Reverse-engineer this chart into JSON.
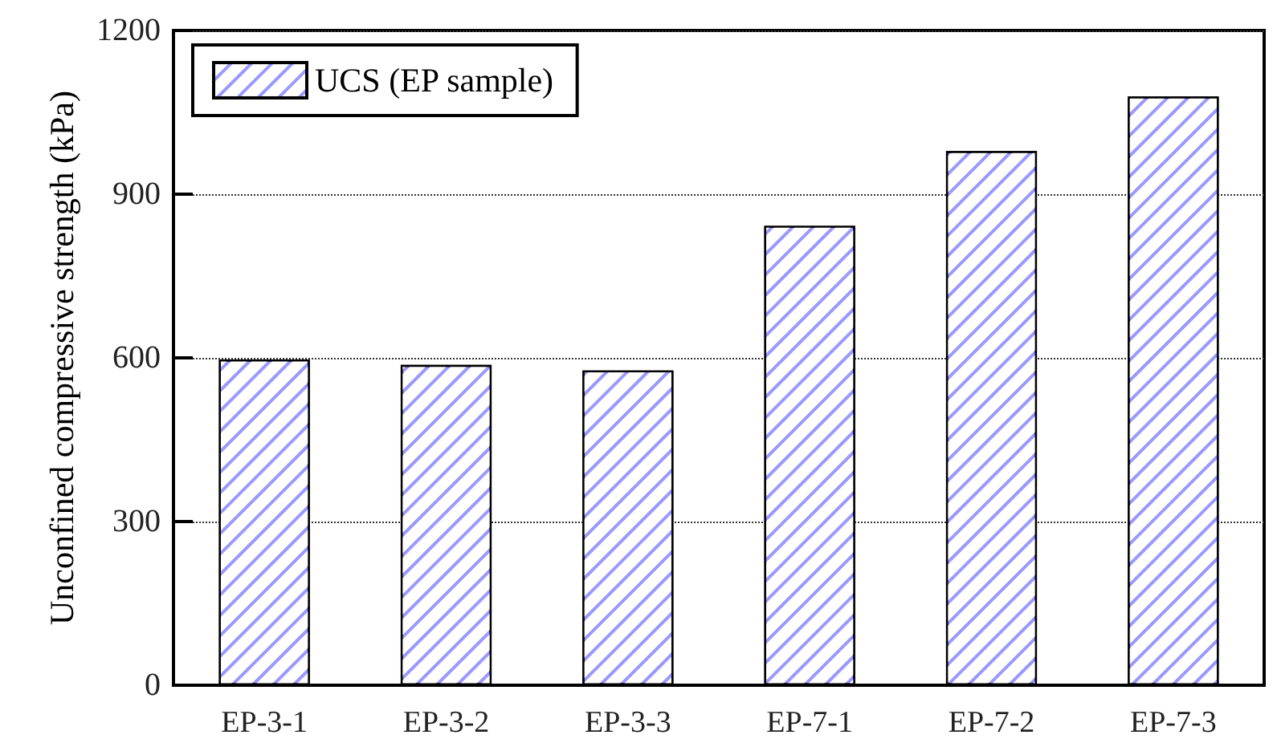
{
  "chart_data": {
    "type": "bar",
    "ylabel": "Unconfined compressive strength (kPa)",
    "categories": [
      "EP-3-1",
      "EP-3-2",
      "EP-3-3",
      "EP-7-1",
      "EP-7-2",
      "EP-7-3"
    ],
    "series": [
      {
        "name": "UCS (EP sample)",
        "color": "#9999ff",
        "values": [
          597,
          587,
          577,
          842,
          979,
          1079
        ]
      }
    ],
    "ylim": [
      0,
      1200
    ],
    "yticks": [
      0,
      300,
      600,
      900,
      1200
    ],
    "grid": "y",
    "legend": "top left"
  }
}
